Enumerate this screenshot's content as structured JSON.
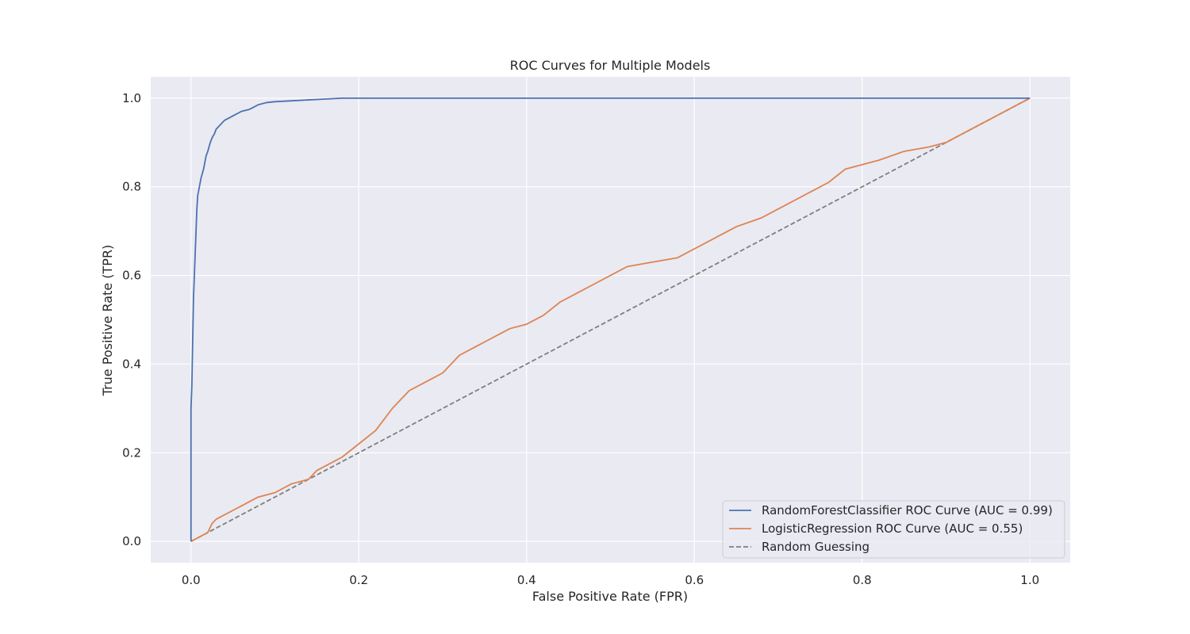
{
  "chart_data": {
    "type": "line",
    "title": "ROC Curves for Multiple Models",
    "xlabel": "False Positive Rate (FPR)",
    "ylabel": "True Positive Rate (TPR)",
    "xlim": [
      -0.048,
      1.048
    ],
    "ylim": [
      -0.048,
      1.048
    ],
    "xticks": [
      0.0,
      0.2,
      0.4,
      0.6,
      0.8,
      1.0
    ],
    "yticks": [
      0.0,
      0.2,
      0.4,
      0.6,
      0.8,
      1.0
    ],
    "xtick_labels": [
      "0.0",
      "0.2",
      "0.4",
      "0.6",
      "0.8",
      "1.0"
    ],
    "ytick_labels": [
      "0.0",
      "0.2",
      "0.4",
      "0.6",
      "0.8",
      "1.0"
    ],
    "grid": true,
    "legend_position": "lower-right",
    "series": [
      {
        "name": "RandomForestClassifier ROC Curve (AUC = 0.99)",
        "color": "#4c72b0",
        "dashed": false,
        "x": [
          0.0,
          0.0,
          0.001,
          0.002,
          0.003,
          0.004,
          0.005,
          0.006,
          0.007,
          0.008,
          0.01,
          0.012,
          0.015,
          0.018,
          0.02,
          0.023,
          0.025,
          0.028,
          0.03,
          0.035,
          0.04,
          0.045,
          0.05,
          0.06,
          0.07,
          0.075,
          0.08,
          0.09,
          0.1,
          0.12,
          0.14,
          0.16,
          0.18,
          0.25,
          0.5,
          1.0
        ],
        "y": [
          0.0,
          0.3,
          0.35,
          0.45,
          0.55,
          0.6,
          0.65,
          0.7,
          0.75,
          0.78,
          0.8,
          0.82,
          0.84,
          0.87,
          0.88,
          0.9,
          0.91,
          0.92,
          0.93,
          0.94,
          0.95,
          0.955,
          0.96,
          0.97,
          0.975,
          0.98,
          0.985,
          0.99,
          0.992,
          0.994,
          0.996,
          0.998,
          1.0,
          1.0,
          1.0,
          1.0
        ]
      },
      {
        "name": "LogisticRegression ROC Curve (AUC = 0.55)",
        "color": "#dd8452",
        "dashed": false,
        "x": [
          0.0,
          0.02,
          0.025,
          0.03,
          0.04,
          0.05,
          0.06,
          0.07,
          0.08,
          0.1,
          0.12,
          0.14,
          0.15,
          0.16,
          0.18,
          0.2,
          0.22,
          0.24,
          0.26,
          0.28,
          0.3,
          0.32,
          0.34,
          0.36,
          0.38,
          0.4,
          0.42,
          0.44,
          0.46,
          0.48,
          0.5,
          0.52,
          0.55,
          0.58,
          0.6,
          0.62,
          0.65,
          0.68,
          0.7,
          0.72,
          0.74,
          0.76,
          0.78,
          0.8,
          0.82,
          0.85,
          0.88,
          0.9,
          0.92,
          0.95,
          0.98,
          1.0
        ],
        "y": [
          0.0,
          0.02,
          0.04,
          0.05,
          0.06,
          0.07,
          0.08,
          0.09,
          0.1,
          0.11,
          0.13,
          0.14,
          0.16,
          0.17,
          0.19,
          0.22,
          0.25,
          0.3,
          0.34,
          0.36,
          0.38,
          0.42,
          0.44,
          0.46,
          0.48,
          0.49,
          0.51,
          0.54,
          0.56,
          0.58,
          0.6,
          0.62,
          0.63,
          0.64,
          0.66,
          0.68,
          0.71,
          0.73,
          0.75,
          0.77,
          0.79,
          0.81,
          0.84,
          0.85,
          0.86,
          0.88,
          0.89,
          0.9,
          0.92,
          0.95,
          0.98,
          1.0
        ]
      },
      {
        "name": "Random Guessing",
        "color": "#7f7f7f",
        "dashed": true,
        "x": [
          0.0,
          1.0
        ],
        "y": [
          0.0,
          1.0
        ]
      }
    ]
  }
}
